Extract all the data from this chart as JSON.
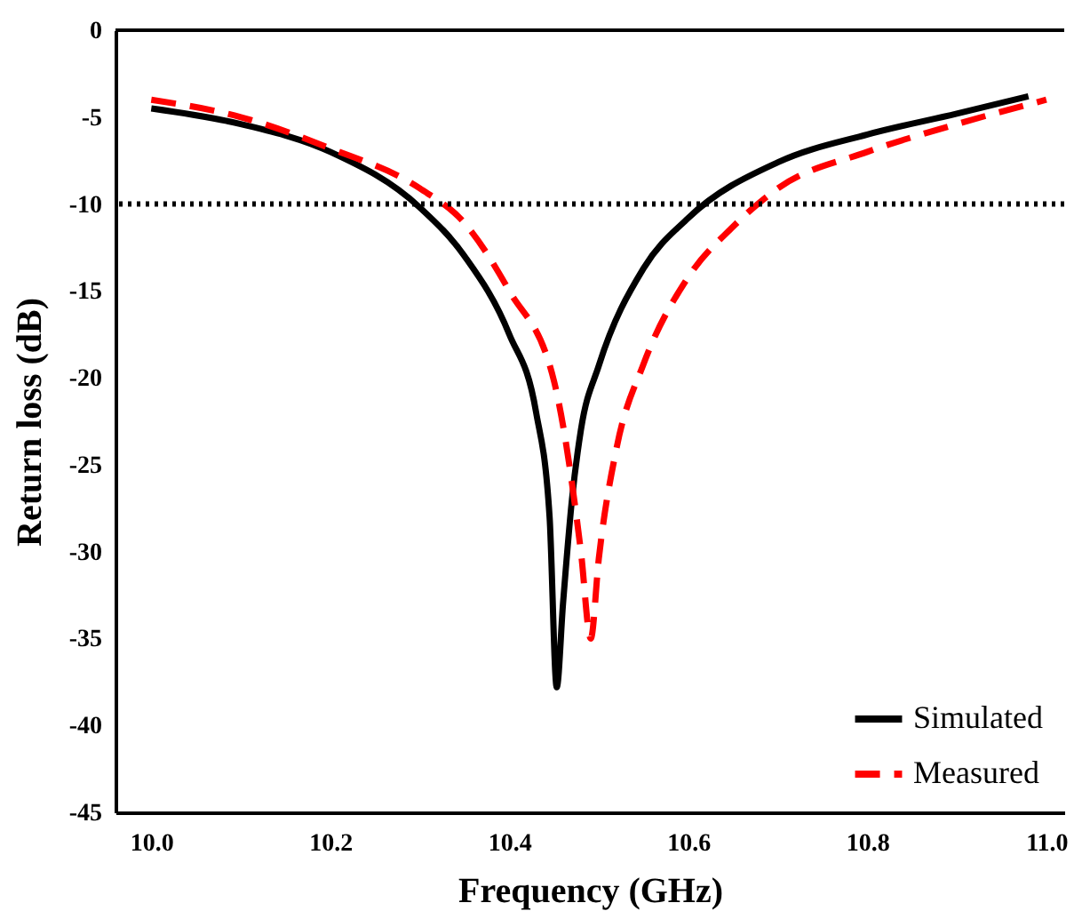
{
  "chart_data": {
    "type": "line",
    "xlabel": "Frequency (GHz)",
    "ylabel": "Return loss (dB)",
    "xlim": [
      9.96,
      11.02
    ],
    "xticks": [
      {
        "value": 10,
        "label": "10.0"
      },
      10.2,
      10.4,
      10.6,
      10.8,
      {
        "value": 11,
        "label": "11.0"
      }
    ],
    "ylim": [
      -45,
      0
    ],
    "yticks": [
      0,
      -5,
      -10,
      -15,
      -20,
      -25,
      -30,
      -35,
      -40,
      -45
    ],
    "grid": false,
    "legend": "bottom right",
    "marker": "none",
    "ref_lines": [
      {
        "axis": "y",
        "value": -10,
        "color": "#000000",
        "line_style": "dotted"
      }
    ],
    "series": [
      {
        "name": "Simulated",
        "color": "#000000",
        "line_style": "solid",
        "x": [
          10.0,
          10.1,
          10.2,
          10.3,
          10.35,
          10.4,
          10.43,
          10.445,
          10.453,
          10.46,
          10.47,
          10.48,
          10.5,
          10.55,
          10.6,
          10.7,
          10.8,
          10.9,
          10.98
        ],
        "values": [
          -4.5,
          -5.4,
          -7.0,
          -10.2,
          -13,
          -17.5,
          -22,
          -28,
          -37.8,
          -33,
          -27,
          -23,
          -19.3,
          -13.7,
          -10.8,
          -7.6,
          -6.0,
          -4.8,
          -3.8
        ]
      },
      {
        "name": "Measured",
        "color": "#ff0000",
        "line_style": "dashed",
        "x": [
          10.0,
          10.1,
          10.2,
          10.3,
          10.35,
          10.4,
          10.45,
          10.48,
          10.491,
          10.5,
          10.52,
          10.55,
          10.6,
          10.65,
          10.7,
          10.8,
          10.9,
          11.0
        ],
        "values": [
          -4.0,
          -5.0,
          -6.8,
          -9.1,
          -11.1,
          -15,
          -20.2,
          -30,
          -35,
          -30.4,
          -24,
          -19.2,
          -14.2,
          -11.3,
          -9.1,
          -7.0,
          -5.4,
          -4.0
        ]
      }
    ]
  }
}
